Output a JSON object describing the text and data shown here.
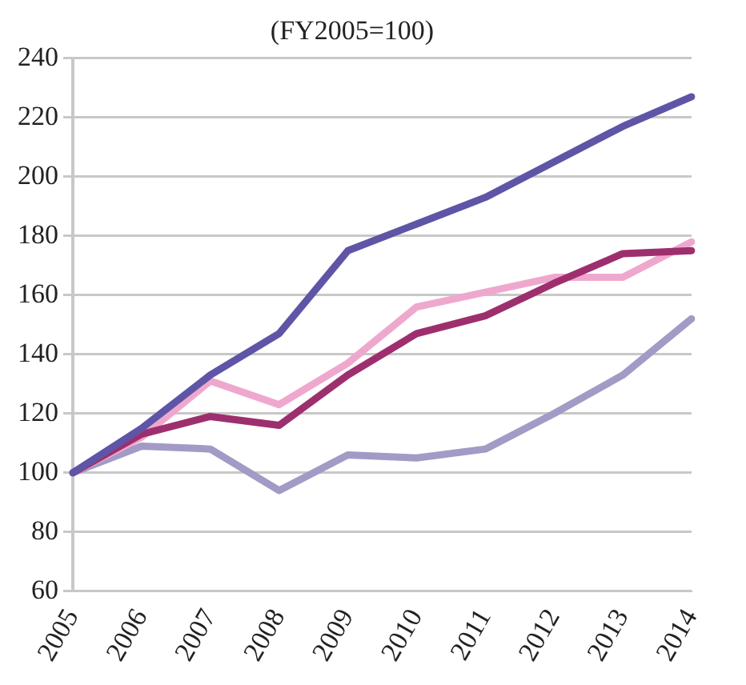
{
  "chart_data": {
    "type": "line",
    "title": "(FY2005=100)",
    "categories": [
      "2005",
      "2006",
      "2007",
      "2008",
      "2009",
      "2010",
      "2011",
      "2012",
      "2013",
      "2014"
    ],
    "series": [
      {
        "color": "#5f55a6",
        "values": [
          100,
          115,
          133,
          147,
          175,
          184,
          193,
          205,
          217,
          227
        ]
      },
      {
        "color": "#9e2f6e",
        "values": [
          100,
          113,
          119,
          116,
          133,
          147,
          153,
          164,
          174,
          175
        ]
      },
      {
        "color": "#efa8cd",
        "values": [
          100,
          112,
          131,
          123,
          137,
          156,
          161,
          166,
          166,
          178
        ]
      },
      {
        "color": "#a39ac6",
        "values": [
          100,
          109,
          108,
          94,
          106,
          105,
          108,
          120,
          133,
          152
        ]
      }
    ],
    "ylim": [
      60,
      240
    ],
    "yticks": [
      60,
      80,
      100,
      120,
      140,
      160,
      180,
      200,
      220,
      240
    ],
    "grid": "y",
    "legend": false,
    "marker": "none",
    "line_style": "solid"
  }
}
